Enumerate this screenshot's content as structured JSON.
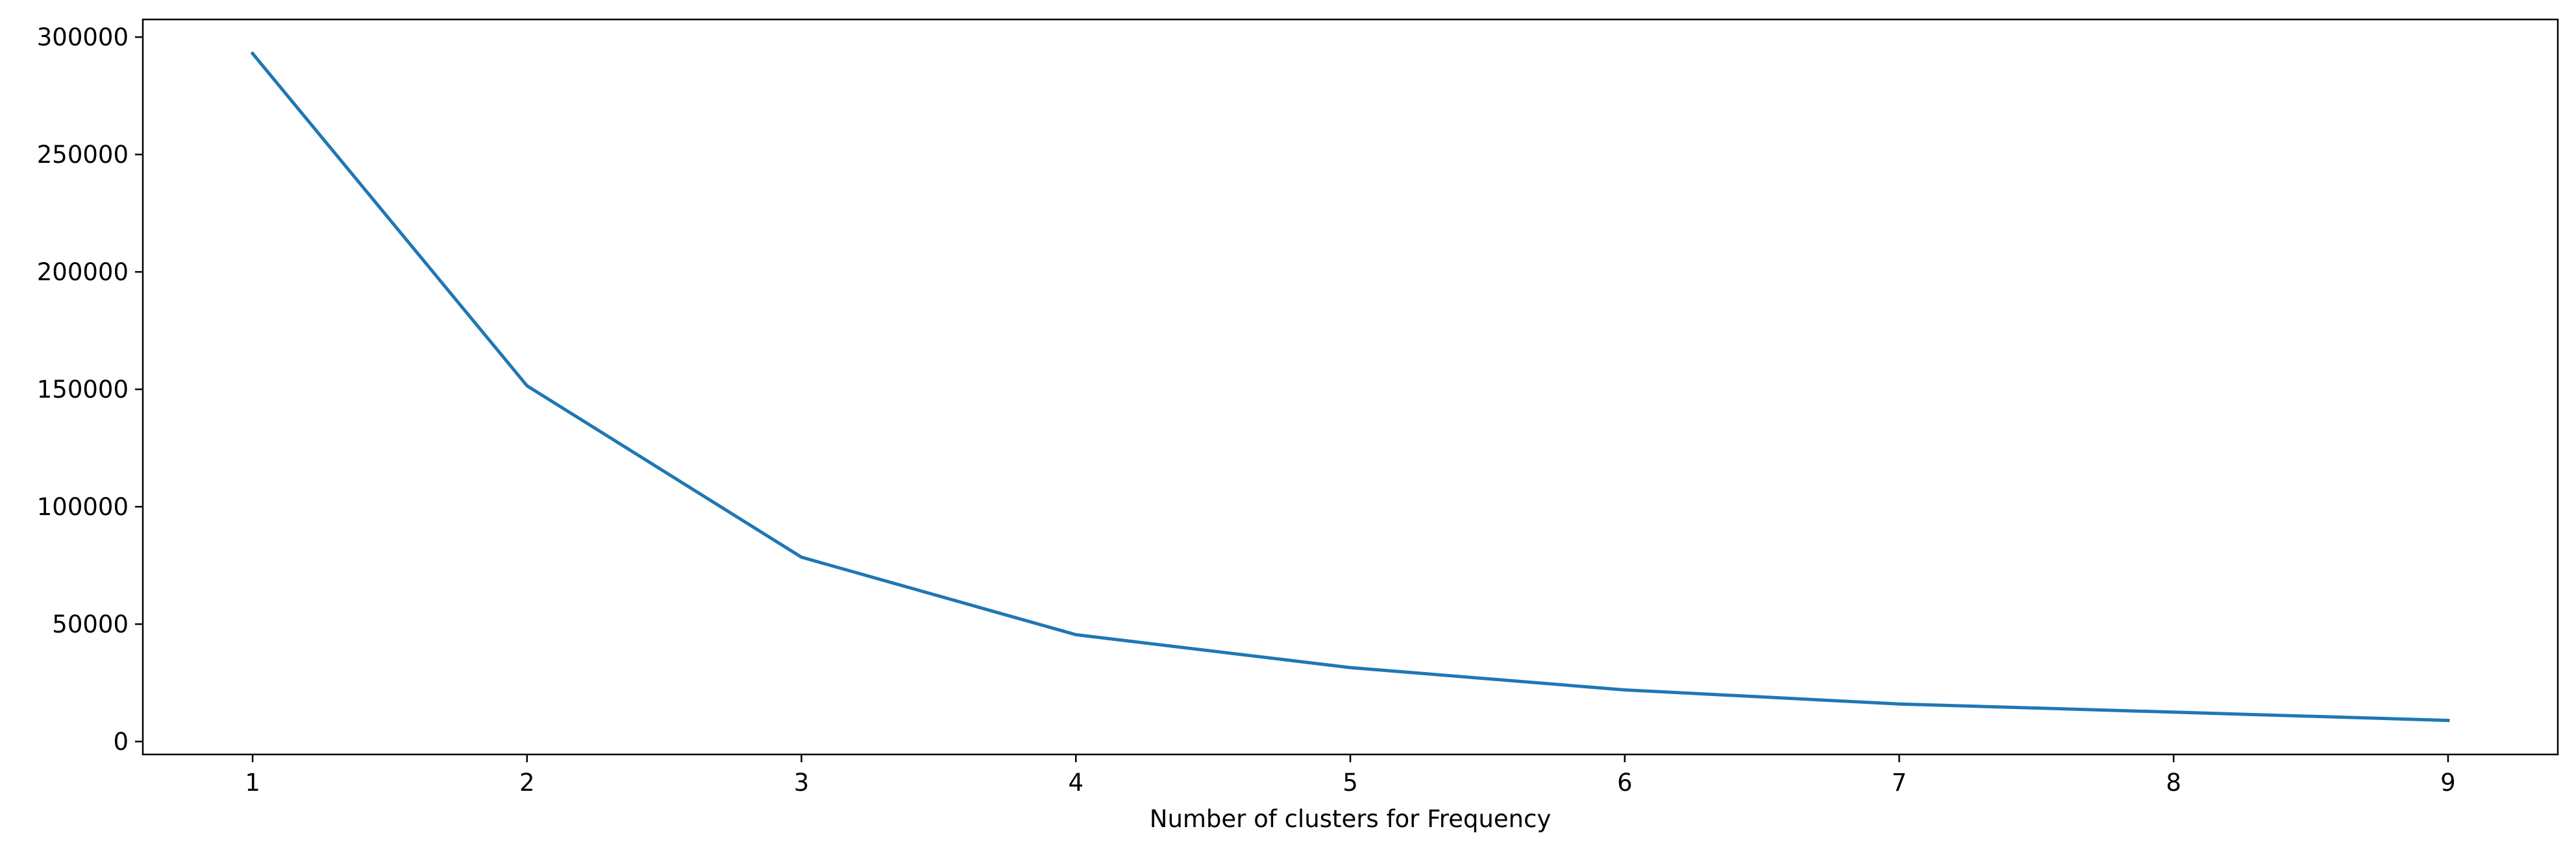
{
  "chart_data": {
    "type": "line",
    "title": "",
    "xlabel": "Number of clusters for Frequency",
    "ylabel": "",
    "x": [
      1,
      2,
      3,
      4,
      5,
      6,
      7,
      8,
      9
    ],
    "series": [
      {
        "values": [
          293000,
          151500,
          78500,
          45500,
          31500,
          22000,
          16000,
          12500,
          9000
        ],
        "color": "#1f77b4"
      }
    ],
    "xlim": [
      0.6,
      9.4
    ],
    "ylim": [
      -5500,
      307500
    ],
    "xticks": [
      1,
      2,
      3,
      4,
      5,
      6,
      7,
      8,
      9
    ],
    "yticks": [
      0,
      50000,
      100000,
      150000,
      200000,
      250000,
      300000
    ],
    "grid": false,
    "legend": "none"
  }
}
